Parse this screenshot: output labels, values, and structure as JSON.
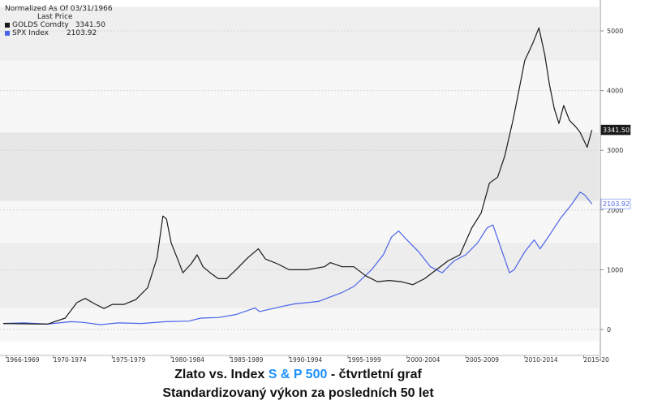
{
  "legend": {
    "header": "Normalized As Of 03/31/1966",
    "subheader": "Last Price",
    "items": [
      {
        "name": "GOLDS Comdty",
        "value": "3341.50",
        "color": "#1a1a1a"
      },
      {
        "name": "SPX Index",
        "value": "2103.92",
        "color": "#4a63e8"
      }
    ]
  },
  "caption": {
    "line1_part1": "Zlato vs. Index ",
    "line1_highlight": "S & P 500",
    "line1_part2": " - čtvrtletní graf",
    "line2": "Standardizovaný výkon za posledních 50 let"
  },
  "chart_data": {
    "type": "line",
    "title": "",
    "x_range": [
      1966.25,
      2016.5
    ],
    "ylim": [
      -200,
      5400
    ],
    "yticks": [
      0,
      1000,
      2000,
      3000,
      4000,
      5000
    ],
    "ytick_labels": [
      "0",
      "1000",
      "2000",
      "3000",
      "4000",
      "5000"
    ],
    "xtick_labels": [
      "1966-1969",
      "1970-1974",
      "1975-1979",
      "1980-1984",
      "1985-1989",
      "1990-1994",
      "1995-1999",
      "2000-2004",
      "2005-2009",
      "2010-2014",
      "2015-20"
    ],
    "xtick_positions": [
      1966.5,
      1970.5,
      1975.5,
      1980.5,
      1985.5,
      1990.5,
      1995.5,
      2000.5,
      2005.5,
      2010.5,
      2015.5
    ],
    "series": [
      {
        "name": "GOLDS Comdty",
        "color": "#1a1a1a",
        "last_value": "3341.50",
        "x": [
          1966.25,
          1968,
          1970,
          1971.5,
          1972.5,
          1973.2,
          1974,
          1974.8,
          1975.5,
          1976.5,
          1977.5,
          1978.5,
          1979.3,
          1979.8,
          1980.1,
          1980.5,
          1981,
          1981.5,
          1982.2,
          1982.7,
          1983.2,
          1983.8,
          1984.5,
          1985.2,
          1986,
          1987,
          1987.9,
          1988.5,
          1989.5,
          1990.5,
          1992,
          1993.5,
          1994,
          1995,
          1996,
          1997,
          1998,
          1999,
          2000,
          2001,
          2002,
          2003,
          2004,
          2005,
          2006,
          2006.8,
          2007.5,
          2008.2,
          2008.8,
          2009.5,
          2010,
          2010.5,
          2011.2,
          2011.7,
          2012.2,
          2012.6,
          2013,
          2013.4,
          2013.8,
          2014.3,
          2014.8,
          2015.2,
          2015.8,
          2016.2
        ],
        "values": [
          100,
          95,
          90,
          190,
          450,
          520,
          430,
          350,
          420,
          420,
          500,
          700,
          1200,
          1900,
          1850,
          1450,
          1200,
          950,
          1100,
          1250,
          1050,
          950,
          850,
          850,
          1000,
          1200,
          1350,
          1180,
          1100,
          1000,
          1000,
          1050,
          1120,
          1050,
          1050,
          900,
          800,
          820,
          800,
          750,
          850,
          1000,
          1150,
          1250,
          1700,
          1950,
          2450,
          2550,
          2900,
          3500,
          4000,
          4500,
          4800,
          5050,
          4600,
          4100,
          3700,
          3450,
          3750,
          3500,
          3400,
          3300,
          3050,
          3341.5
        ]
      },
      {
        "name": "SPX Index",
        "color": "#4a63e8",
        "last_value": "2103.92",
        "x": [
          1966.25,
          1968,
          1970,
          1972,
          1973,
          1974.5,
          1976,
          1978,
          1980,
          1982,
          1983,
          1984.5,
          1986,
          1987.6,
          1988,
          1990,
          1991,
          1993,
          1995,
          1996,
          1997.5,
          1998.5,
          1999.2,
          1999.8,
          2000.5,
          2001.5,
          2002.5,
          2003.5,
          2004.5,
          2005.5,
          2006.5,
          2007.3,
          2007.8,
          2008.5,
          2009.2,
          2009.6,
          2010.5,
          2011.3,
          2011.8,
          2012.5,
          2013.5,
          2014.5,
          2015.2,
          2015.6,
          2016.2
        ],
        "values": [
          100,
          110,
          90,
          130,
          120,
          80,
          110,
          100,
          130,
          140,
          190,
          200,
          250,
          360,
          300,
          390,
          430,
          470,
          620,
          720,
          1000,
          1250,
          1550,
          1650,
          1500,
          1300,
          1050,
          950,
          1150,
          1250,
          1450,
          1700,
          1750,
          1350,
          950,
          1000,
          1300,
          1500,
          1350,
          1550,
          1850,
          2100,
          2300,
          2250,
          2103.92
        ]
      }
    ]
  }
}
